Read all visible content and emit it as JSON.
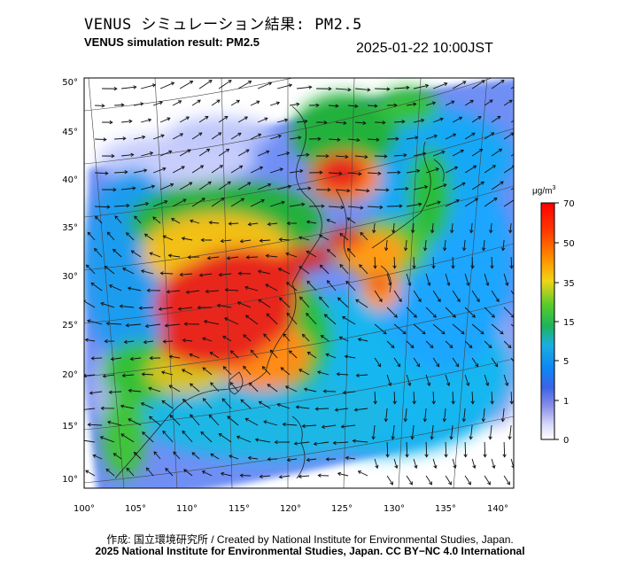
{
  "header": {
    "title_jp": "VENUS シミュレーション結果: PM2.5",
    "title_en": "VENUS simulation result: PM2.5",
    "timestamp": "2025-01-22 10:00JST"
  },
  "map": {
    "region": "East Asia",
    "lon_range": [
      100,
      142
    ],
    "lat_range": [
      9,
      51
    ],
    "lon_ticks": [
      "100°",
      "105°",
      "110°",
      "115°",
      "120°",
      "125°",
      "130°",
      "135°",
      "140°"
    ],
    "lat_ticks": [
      "10°",
      "15°",
      "20°",
      "25°",
      "30°",
      "35°",
      "40°",
      "45°",
      "50°"
    ],
    "variable": "PM2.5",
    "wind_vectors": true,
    "colors": {
      "background": "#ffffff",
      "high": "#e8261c",
      "med_high": "#ff8c14",
      "med": "#21b13a",
      "low": "#18a8ff",
      "very_low": "#6f8ff5",
      "minimal": "#c7cefc"
    }
  },
  "colorbar": {
    "unit": "μg/m3",
    "unit_base": "μg/m",
    "unit_sup": "3",
    "ticks": [
      "70",
      "50",
      "35",
      "15",
      "5",
      "1",
      "0"
    ],
    "tick_values": [
      70,
      50,
      35,
      15,
      5,
      1,
      0
    ],
    "colors": [
      "#ff0000",
      "#ff4e00",
      "#ffa500",
      "#e8e020",
      "#47cc2b",
      "#20b44a",
      "#1aaed6",
      "#0b86f7",
      "#3a63e7",
      "#8b8ee8",
      "#d8d9fb",
      "#ffffff"
    ]
  },
  "credits": {
    "line1": "作成: 国立環境研究所 / Created by National Institute for Environmental Studies, Japan.",
    "line2": "2025 National Institute for Environmental Studies, Japan. CC BY−NC 4.0 International"
  }
}
